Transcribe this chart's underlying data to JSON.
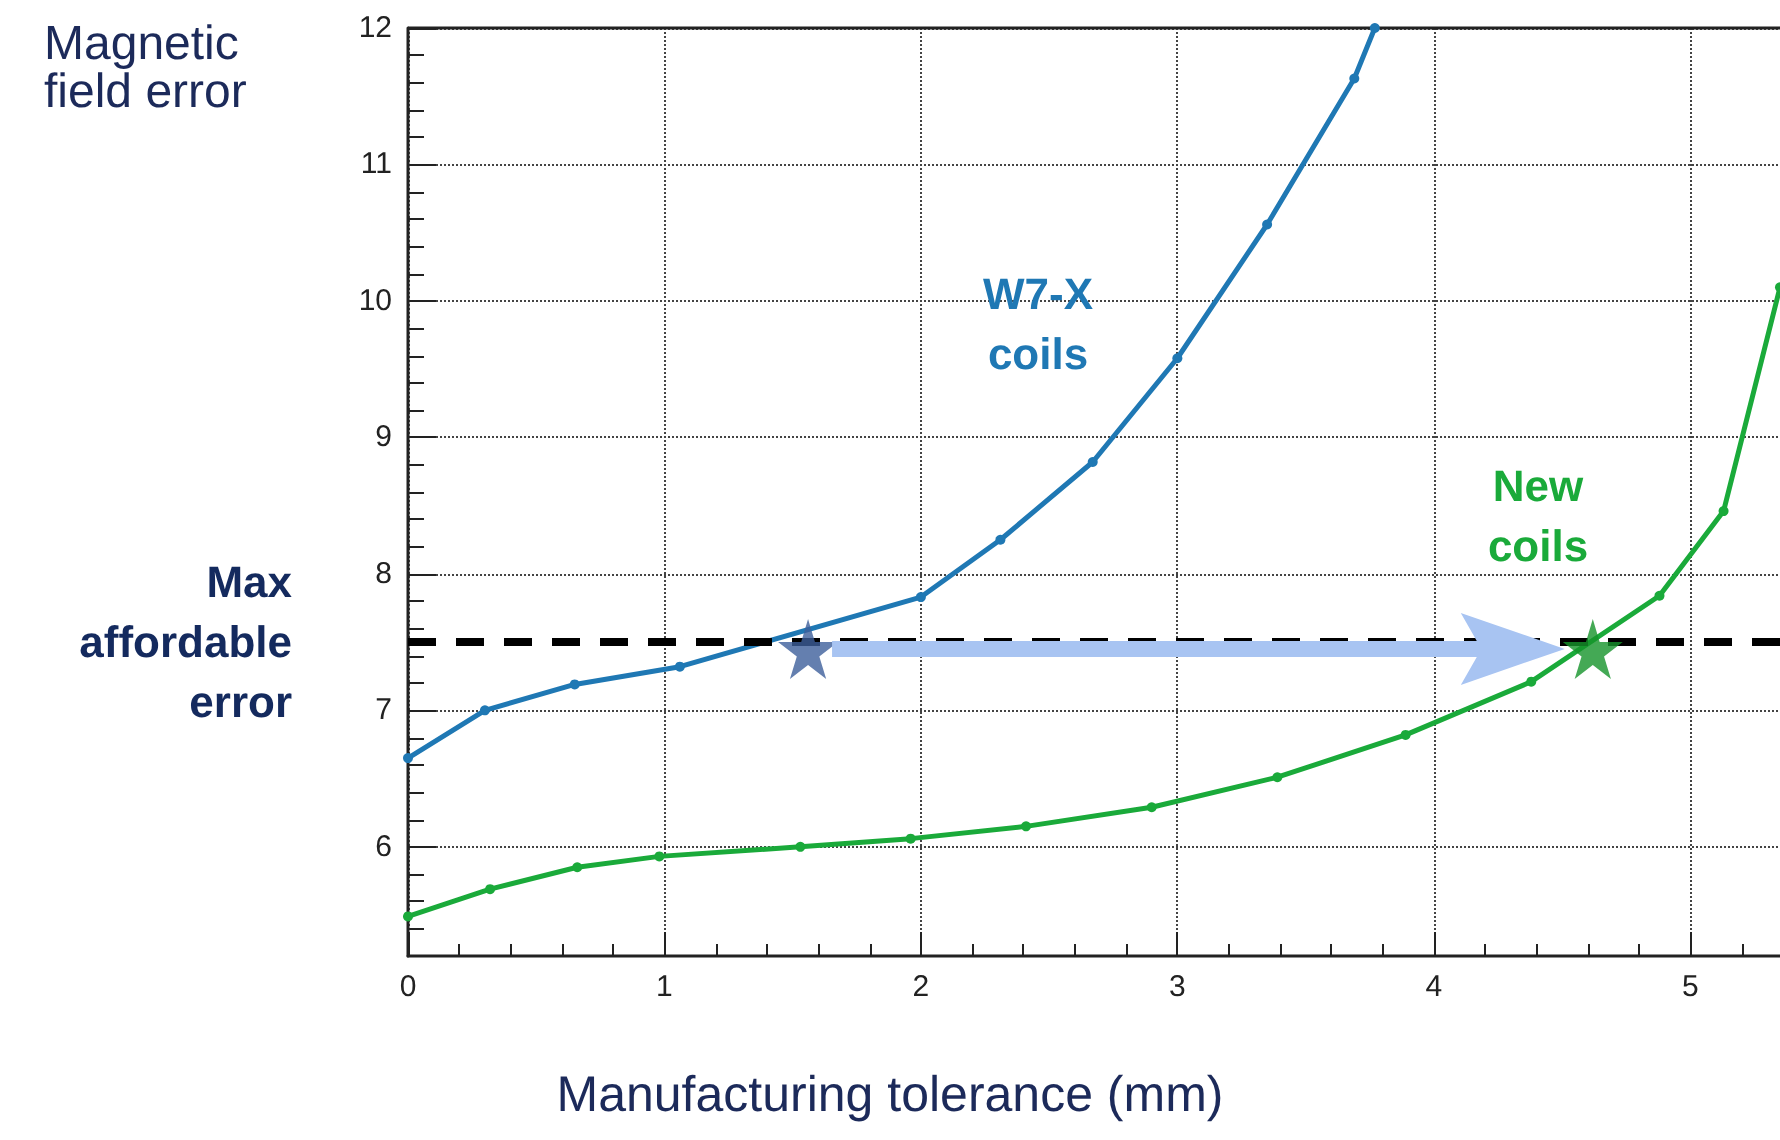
{
  "chart_data": {
    "type": "line",
    "xlabel": "Manufacturing tolerance (mm)",
    "ylabel": "Magnetic\nfield error",
    "xlim": [
      0,
      5.35
    ],
    "xticks": [
      0,
      1,
      2,
      3,
      4,
      5
    ],
    "ylim": [
      5.2,
      12
    ],
    "yticks": [
      6,
      7,
      8,
      9,
      10,
      11,
      12
    ],
    "grid": true,
    "marker": "circle",
    "series": [
      {
        "color": "#1f78b4",
        "x": [
          0,
          0.3,
          0.65,
          1.06,
          2.0,
          2.31,
          2.67,
          3.0,
          3.35,
          3.69,
          3.77
        ],
        "values": [
          6.65,
          7.0,
          7.19,
          7.32,
          7.83,
          8.25,
          8.82,
          9.58,
          10.56,
          11.63,
          12
        ]
      },
      {
        "color": "#1aaa3a",
        "x": [
          0,
          0.32,
          0.66,
          0.98,
          1.53,
          1.96,
          2.41,
          2.9,
          3.39,
          3.89,
          4.38,
          4.88,
          5.13,
          5.35
        ],
        "values": [
          5.49,
          5.69,
          5.85,
          5.93,
          6.0,
          6.06,
          6.15,
          6.29,
          6.51,
          6.82,
          7.21,
          7.84,
          8.46,
          10.1
        ]
      },
      {
        "type": "scatter",
        "marker": "star",
        "color": "#3d5f9b",
        "x": [
          1.56
        ],
        "values": [
          7.45
        ]
      },
      {
        "type": "scatter",
        "marker": "star",
        "color": "#15932a",
        "x": [
          4.62
        ],
        "values": [
          7.45
        ]
      }
    ],
    "ref_lines": [
      {
        "axis": "y",
        "value": 7.5,
        "label": "Max\naffordable\nerror",
        "color": "#000000",
        "line_style": "dashed"
      }
    ],
    "annotations": [
      "W7-X\ncoils",
      "New\ncoils"
    ]
  }
}
